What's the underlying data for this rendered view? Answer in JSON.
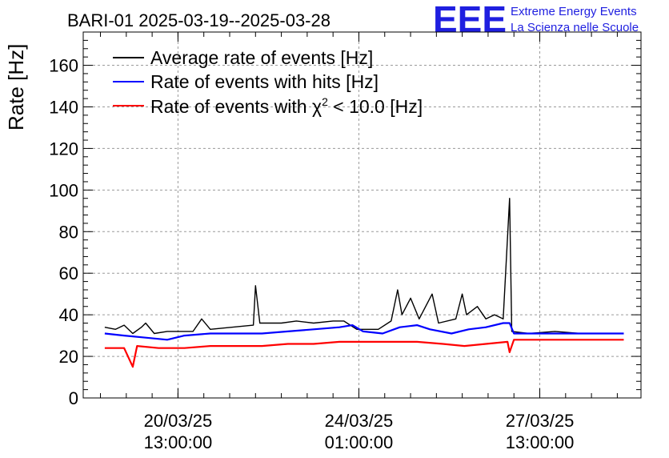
{
  "header": {
    "title": "BARI-01 2025-03-19--2025-03-28",
    "logo_mark": "EEE",
    "logo_line1": "Extreme Energy Events",
    "logo_line2": "La Scienza nelle Scuole"
  },
  "colors": {
    "logo": "#1f1fe0",
    "average": "#000000",
    "hits": "#0000ff",
    "chi2": "#ff0000"
  },
  "legend": {
    "average": "Average rate of events [Hz]",
    "hits": "Rate of events with hits [Hz]",
    "chi2_prefix": "Rate of events with ",
    "chi2_symbol": "χ",
    "chi2_sup": "2",
    "chi2_suffix": " < 10.0 [Hz]"
  },
  "chart_data": {
    "type": "line",
    "title": "BARI-01 2025-03-19--2025-03-28",
    "ylabel": "Rate [Hz]",
    "xlabel": "",
    "xlim": [
      "2025-03-18T17:00:00",
      "2025-03-29T12:00:00"
    ],
    "ylim": [
      0,
      176
    ],
    "grid": true,
    "legend_position": "top-left",
    "yticks": [
      0,
      20,
      40,
      60,
      80,
      100,
      120,
      140,
      160
    ],
    "xticks": [
      {
        "time": "2025-03-20T13:00:00",
        "date": "20/03/25",
        "clock": "13:00:00"
      },
      {
        "time": "2025-03-24T01:00:00",
        "date": "24/03/25",
        "clock": "01:00:00"
      },
      {
        "time": "2025-03-27T13:00:00",
        "date": "27/03/25",
        "clock": "13:00:00"
      }
    ],
    "series": [
      {
        "name": "Average rate of events [Hz]",
        "color": "#000000",
        "points": [
          [
            "2025-03-19T03:00",
            34
          ],
          [
            "2025-03-19T08:00",
            33
          ],
          [
            "2025-03-19T12:00",
            35
          ],
          [
            "2025-03-19T16:00",
            31
          ],
          [
            "2025-03-19T20:00",
            34
          ],
          [
            "2025-03-19T22:00",
            36
          ],
          [
            "2025-03-20T02:00",
            31
          ],
          [
            "2025-03-20T08:00",
            32
          ],
          [
            "2025-03-20T13:00",
            32
          ],
          [
            "2025-03-20T20:00",
            32
          ],
          [
            "2025-03-21T00:00",
            38
          ],
          [
            "2025-03-21T04:00",
            33
          ],
          [
            "2025-03-21T14:00",
            34
          ],
          [
            "2025-03-22T00:00",
            35
          ],
          [
            "2025-03-22T01:00",
            54
          ],
          [
            "2025-03-22T03:00",
            36
          ],
          [
            "2025-03-22T13:00",
            36
          ],
          [
            "2025-03-22T20:00",
            37
          ],
          [
            "2025-03-23T04:00",
            36
          ],
          [
            "2025-03-23T13:00",
            37
          ],
          [
            "2025-03-23T18:00",
            37
          ],
          [
            "2025-03-24T00:00",
            33
          ],
          [
            "2025-03-24T10:00",
            33
          ],
          [
            "2025-03-24T16:00",
            37
          ],
          [
            "2025-03-24T19:00",
            52
          ],
          [
            "2025-03-24T21:00",
            40
          ],
          [
            "2025-03-25T01:00",
            48
          ],
          [
            "2025-03-25T05:00",
            38
          ],
          [
            "2025-03-25T11:00",
            50
          ],
          [
            "2025-03-25T14:00",
            36
          ],
          [
            "2025-03-25T22:00",
            38
          ],
          [
            "2025-03-26T01:00",
            50
          ],
          [
            "2025-03-26T03:00",
            40
          ],
          [
            "2025-03-26T08:00",
            44
          ],
          [
            "2025-03-26T12:00",
            38
          ],
          [
            "2025-03-26T16:00",
            40
          ],
          [
            "2025-03-26T20:00",
            38
          ],
          [
            "2025-03-26T23:00",
            96
          ],
          [
            "2025-03-27T00:00",
            32
          ],
          [
            "2025-03-27T08:00",
            31
          ],
          [
            "2025-03-27T20:00",
            32
          ],
          [
            "2025-03-28T08:00",
            31
          ],
          [
            "2025-03-28T20:00",
            31
          ],
          [
            "2025-03-29T04:00",
            31
          ]
        ]
      },
      {
        "name": "Rate of events with hits [Hz]",
        "color": "#0000ff",
        "points": [
          [
            "2025-03-19T03:00",
            31
          ],
          [
            "2025-03-19T12:00",
            30
          ],
          [
            "2025-03-19T22:00",
            29
          ],
          [
            "2025-03-20T08:00",
            28
          ],
          [
            "2025-03-20T16:00",
            30
          ],
          [
            "2025-03-21T04:00",
            31
          ],
          [
            "2025-03-21T16:00",
            31
          ],
          [
            "2025-03-22T04:00",
            31
          ],
          [
            "2025-03-22T16:00",
            32
          ],
          [
            "2025-03-23T04:00",
            33
          ],
          [
            "2025-03-23T16:00",
            34
          ],
          [
            "2025-03-23T22:00",
            35
          ],
          [
            "2025-03-24T03:00",
            32
          ],
          [
            "2025-03-24T12:00",
            31
          ],
          [
            "2025-03-24T20:00",
            34
          ],
          [
            "2025-03-25T04:00",
            35
          ],
          [
            "2025-03-25T10:00",
            33
          ],
          [
            "2025-03-25T20:00",
            31
          ],
          [
            "2025-03-26T04:00",
            33
          ],
          [
            "2025-03-26T12:00",
            34
          ],
          [
            "2025-03-26T20:00",
            36
          ],
          [
            "2025-03-26T23:00",
            36
          ],
          [
            "2025-03-27T01:00",
            31
          ],
          [
            "2025-03-27T12:00",
            31
          ],
          [
            "2025-03-28T00:00",
            31
          ],
          [
            "2025-03-28T12:00",
            31
          ],
          [
            "2025-03-29T04:00",
            31
          ]
        ]
      },
      {
        "name": "Rate of events with χ2 < 10.0 [Hz]",
        "color": "#ff0000",
        "points": [
          [
            "2025-03-19T03:00",
            24
          ],
          [
            "2025-03-19T12:00",
            24
          ],
          [
            "2025-03-19T16:00",
            15
          ],
          [
            "2025-03-19T18:00",
            25
          ],
          [
            "2025-03-20T04:00",
            24
          ],
          [
            "2025-03-20T16:00",
            24
          ],
          [
            "2025-03-21T04:00",
            25
          ],
          [
            "2025-03-21T16:00",
            25
          ],
          [
            "2025-03-22T04:00",
            25
          ],
          [
            "2025-03-22T16:00",
            26
          ],
          [
            "2025-03-23T04:00",
            26
          ],
          [
            "2025-03-23T16:00",
            27
          ],
          [
            "2025-03-24T04:00",
            27
          ],
          [
            "2025-03-24T16:00",
            27
          ],
          [
            "2025-03-25T04:00",
            27
          ],
          [
            "2025-03-25T16:00",
            26
          ],
          [
            "2025-03-26T02:00",
            25
          ],
          [
            "2025-03-26T12:00",
            26
          ],
          [
            "2025-03-26T22:00",
            27
          ],
          [
            "2025-03-26T23:00",
            22
          ],
          [
            "2025-03-27T01:00",
            28
          ],
          [
            "2025-03-27T12:00",
            28
          ],
          [
            "2025-03-28T00:00",
            28
          ],
          [
            "2025-03-28T12:00",
            28
          ],
          [
            "2025-03-29T04:00",
            28
          ]
        ]
      }
    ]
  }
}
